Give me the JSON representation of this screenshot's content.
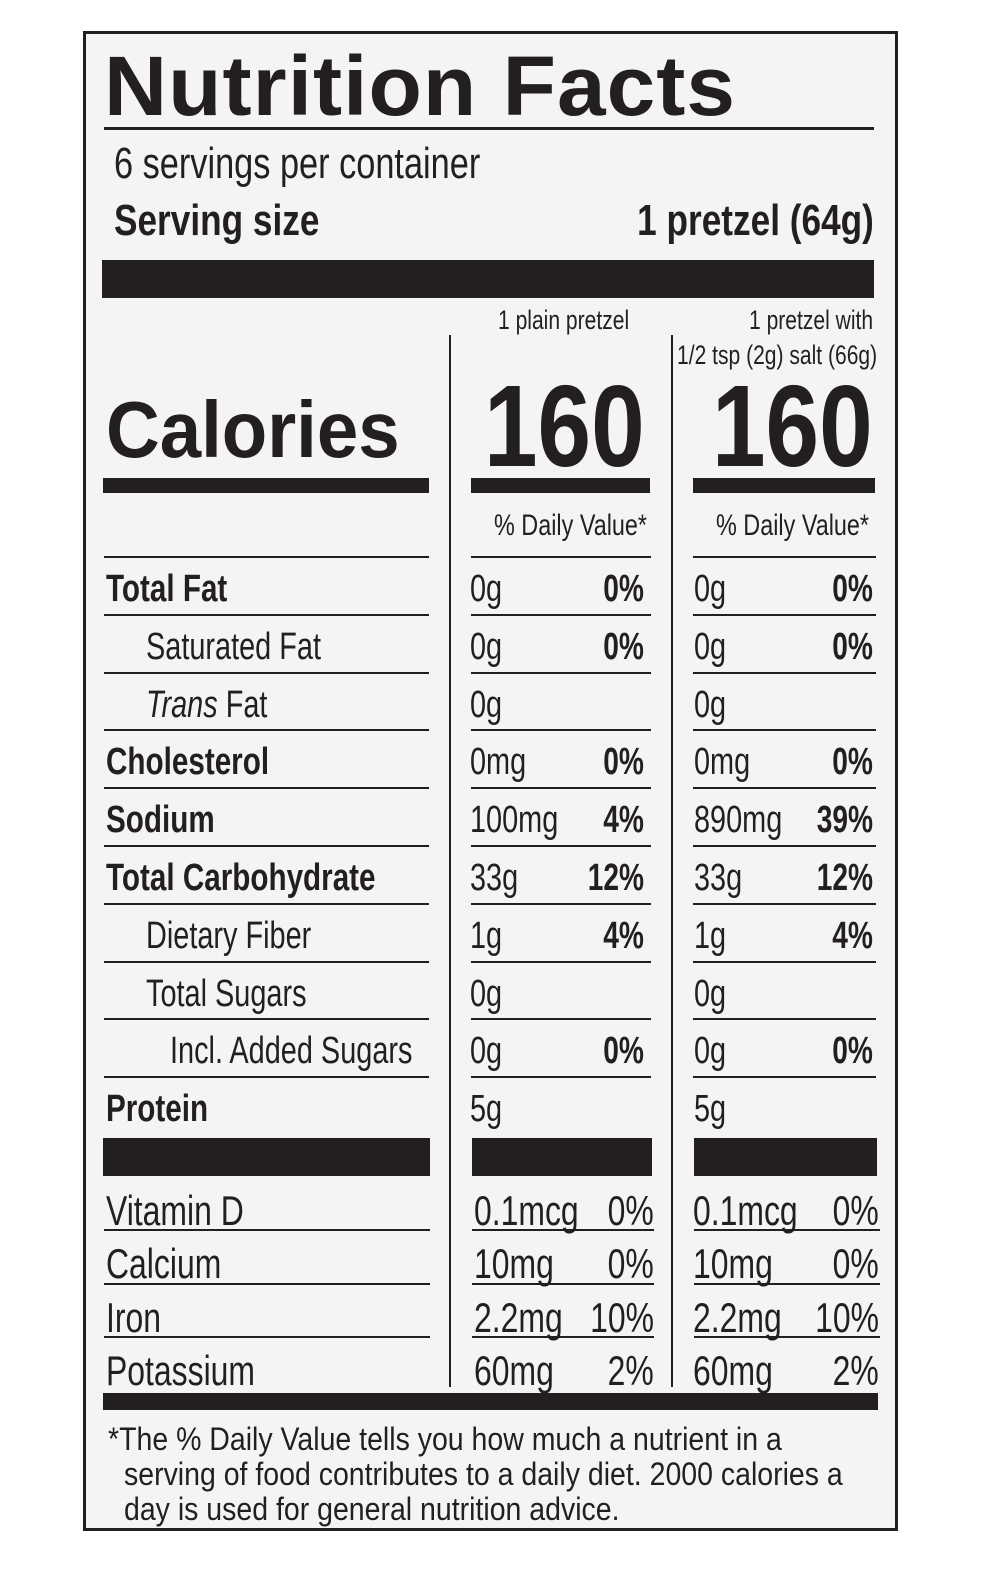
{
  "title": "Nutrition Facts",
  "servings_per_container": "6 servings per container",
  "serving_size_label": "Serving size",
  "serving_size_value": "1 pretzel (64g)",
  "columns": [
    {
      "header_line1": "1 plain pretzel",
      "header_line2": "",
      "calories": "160",
      "dv_header": "% Daily Value*"
    },
    {
      "header_line1": "1 pretzel with",
      "header_line2": "1/2 tsp (2g) salt (66g)",
      "calories": "160",
      "dv_header": "% Daily Value*"
    }
  ],
  "calories_label": "Calories",
  "nutrients": [
    {
      "name": "Total Fat",
      "italic_prefix": "",
      "bold": true,
      "indent": 0,
      "c1_amount": "0g",
      "c1_dv": "0%",
      "c2_amount": "0g",
      "c2_dv": "0%"
    },
    {
      "name": "Saturated Fat",
      "italic_prefix": "",
      "bold": false,
      "indent": 1,
      "c1_amount": "0g",
      "c1_dv": "0%",
      "c2_amount": "0g",
      "c2_dv": "0%"
    },
    {
      "name": " Fat",
      "italic_prefix": "Trans",
      "bold": false,
      "indent": 1,
      "c1_amount": "0g",
      "c1_dv": "",
      "c2_amount": "0g",
      "c2_dv": ""
    },
    {
      "name": "Cholesterol",
      "italic_prefix": "",
      "bold": true,
      "indent": 0,
      "c1_amount": "0mg",
      "c1_dv": "0%",
      "c2_amount": "0mg",
      "c2_dv": "0%"
    },
    {
      "name": "Sodium",
      "italic_prefix": "",
      "bold": true,
      "indent": 0,
      "c1_amount": "100mg",
      "c1_dv": "4%",
      "c2_amount": "890mg",
      "c2_dv": "39%"
    },
    {
      "name": "Total Carbohydrate",
      "italic_prefix": "",
      "bold": true,
      "indent": 0,
      "c1_amount": "33g",
      "c1_dv": "12%",
      "c2_amount": "33g",
      "c2_dv": "12%"
    },
    {
      "name": "Dietary Fiber",
      "italic_prefix": "",
      "bold": false,
      "indent": 1,
      "c1_amount": "1g",
      "c1_dv": "4%",
      "c2_amount": "1g",
      "c2_dv": "4%"
    },
    {
      "name": "Total Sugars",
      "italic_prefix": "",
      "bold": false,
      "indent": 1,
      "c1_amount": "0g",
      "c1_dv": "",
      "c2_amount": "0g",
      "c2_dv": ""
    },
    {
      "name": "Incl. Added Sugars",
      "italic_prefix": "",
      "bold": false,
      "indent": 2,
      "c1_amount": "0g",
      "c1_dv": "0%",
      "c2_amount": "0g",
      "c2_dv": "0%"
    },
    {
      "name": "Protein",
      "italic_prefix": "",
      "bold": true,
      "indent": 0,
      "c1_amount": "5g",
      "c1_dv": "",
      "c2_amount": "5g",
      "c2_dv": ""
    }
  ],
  "vitamins": [
    {
      "name": "Vitamin D",
      "c1_amount": "0.1mcg",
      "c1_dv": "0%",
      "c2_amount": "0.1mcg",
      "c2_dv": "0%"
    },
    {
      "name": "Calcium",
      "c1_amount": "10mg",
      "c1_dv": "0%",
      "c2_amount": "10mg",
      "c2_dv": "0%"
    },
    {
      "name": "Iron",
      "c1_amount": "2.2mg",
      "c1_dv": "10%",
      "c2_amount": "2.2mg",
      "c2_dv": "10%"
    },
    {
      "name": "Potassium",
      "c1_amount": "60mg",
      "c1_dv": "2%",
      "c2_amount": "60mg",
      "c2_dv": "2%"
    }
  ],
  "footnote": {
    "line1": "*The % Daily Value tells you how much a nutrient in a",
    "line2": "serving of food contributes to a daily diet. 2000 calories a",
    "line3": "day is used for general nutrition advice."
  }
}
